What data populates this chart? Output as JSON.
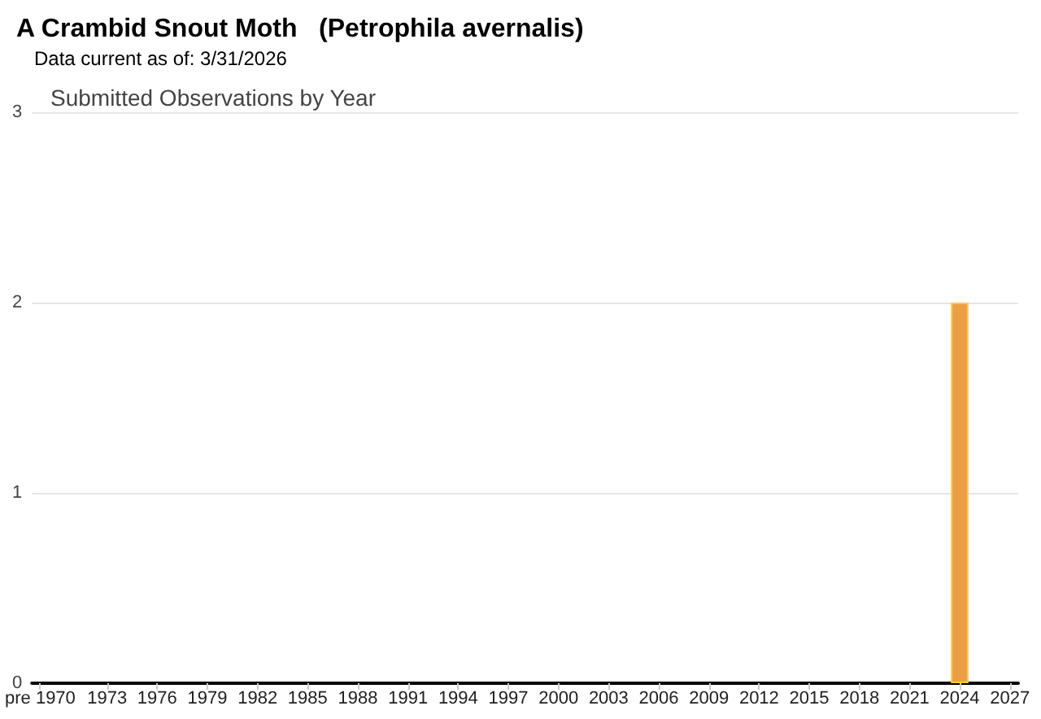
{
  "chart_data": {
    "type": "bar",
    "title": "A Crambid Snout Moth   (Petrophila avernalis)",
    "subtitle": "Data current as of: 3/31/2026",
    "annotations": [
      "Submitted Observations by Year"
    ],
    "x": [
      2024
    ],
    "values": [
      2
    ],
    "color": "#eb9f45",
    "xlim": [
      1968.5,
      2027.5
    ],
    "xticks": [
      {
        "value": 1969,
        "label": "pre 1970"
      },
      1973,
      1976,
      1979,
      1982,
      1985,
      1988,
      1991,
      1994,
      1997,
      2000,
      2003,
      2006,
      2009,
      2012,
      2015,
      2018,
      2021,
      2024,
      2027
    ],
    "ylim": [
      0,
      3
    ],
    "yticks": [
      0,
      1,
      2,
      3
    ],
    "grid": "y"
  }
}
